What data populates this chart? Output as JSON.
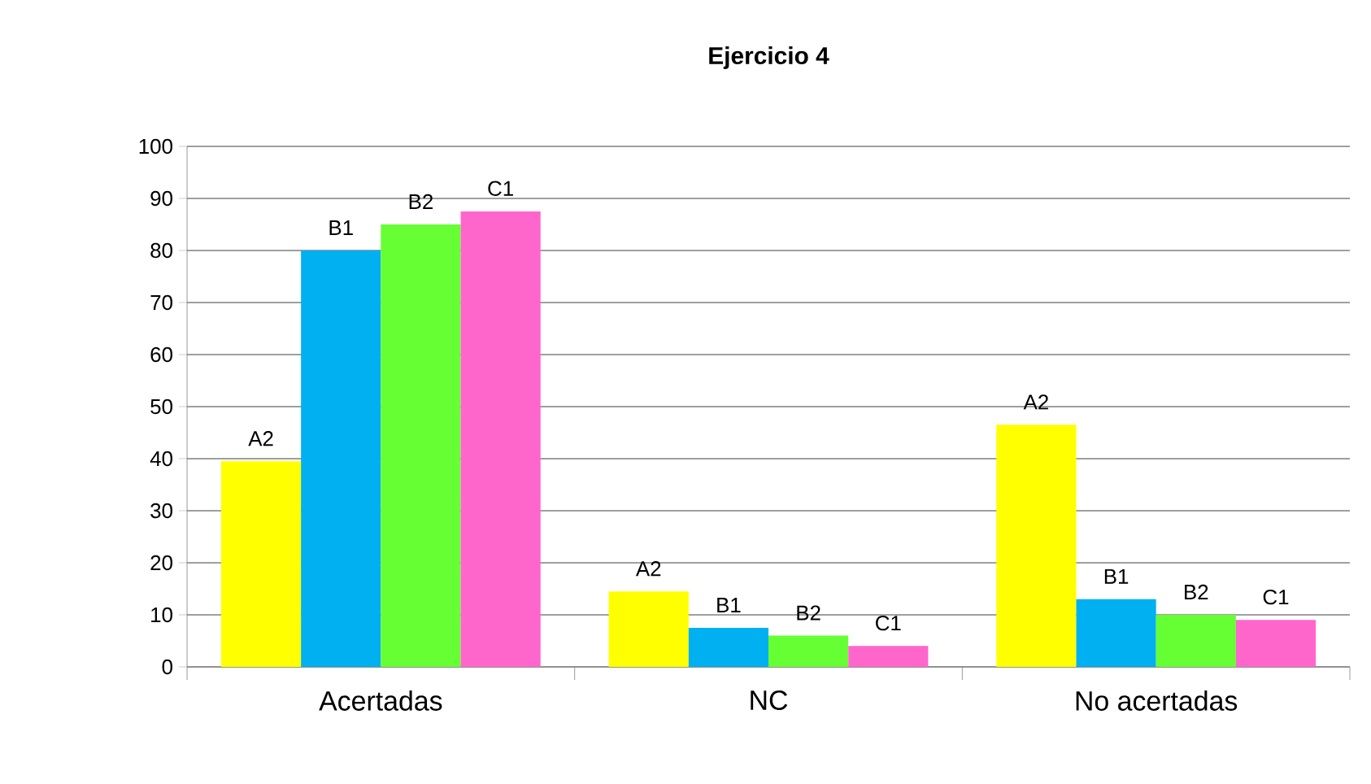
{
  "chart_data": {
    "type": "bar",
    "title": "Ejercicio 4",
    "categories": [
      "Acertadas",
      "NC",
      "No acertadas"
    ],
    "series": [
      {
        "name": "A2",
        "color": "#ffff00",
        "values": [
          39.5,
          14.5,
          46.5
        ]
      },
      {
        "name": "B1",
        "color": "#00b0f0",
        "values": [
          80,
          7.5,
          13
        ]
      },
      {
        "name": "B2",
        "color": "#66ff33",
        "values": [
          85,
          6,
          10
        ]
      },
      {
        "name": "C1",
        "color": "#ff66cc",
        "values": [
          87.5,
          4,
          9
        ]
      }
    ],
    "ylim": [
      0,
      100
    ],
    "yticks": [
      0,
      10,
      20,
      30,
      40,
      50,
      60,
      70,
      80,
      90,
      100
    ],
    "grid": "y"
  }
}
